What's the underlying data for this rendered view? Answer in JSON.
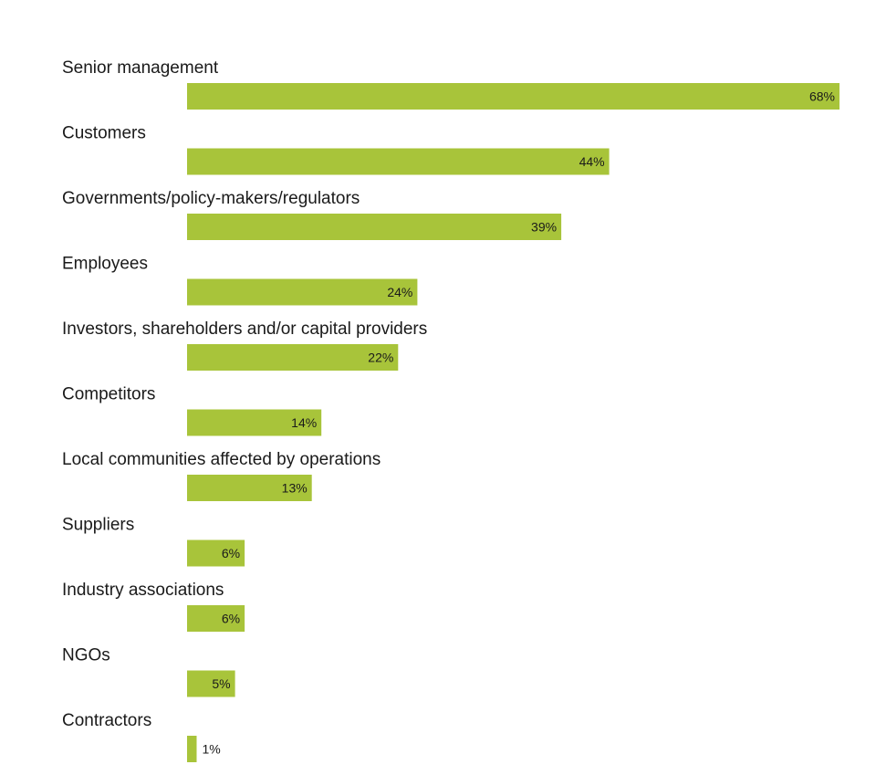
{
  "chart_data": {
    "type": "bar",
    "orientation": "horizontal",
    "categories": [
      "Senior management",
      "Customers",
      "Governments/policy-makers/regulators",
      "Employees",
      "Investors, shareholders and/or capital providers",
      "Competitors",
      "Local communities affected by operations",
      "Suppliers",
      "Industry associations",
      "NGOs",
      "Contractors"
    ],
    "values": [
      68,
      44,
      39,
      24,
      22,
      14,
      13,
      6,
      6,
      5,
      1
    ],
    "value_labels": [
      "68%",
      "44%",
      "39%",
      "24%",
      "22%",
      "14%",
      "13%",
      "6%",
      "6%",
      "5%",
      "1%"
    ],
    "unit": "%",
    "xlim": [
      0,
      68
    ],
    "grid": false,
    "legend": "none",
    "colors": {
      "bar": "#a8c43a",
      "text": "#1a1a1a",
      "background": "#ffffff"
    }
  }
}
